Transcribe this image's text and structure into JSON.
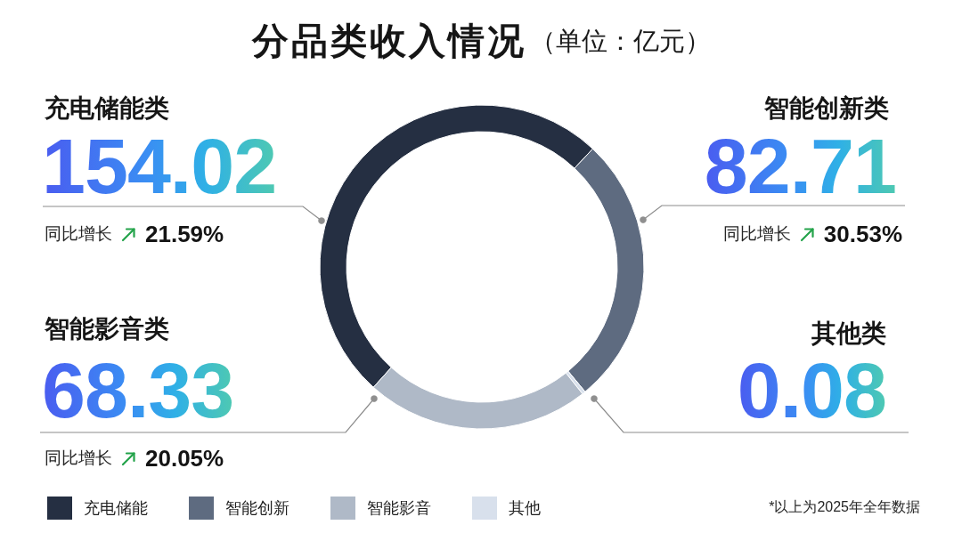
{
  "chart_data": {
    "type": "donut",
    "title": "分品类收入情况",
    "subtitle": "（单位：亿元）",
    "categories": [
      "充电储能",
      "智能创新",
      "智能影音",
      "其他"
    ],
    "values": [
      154.02,
      82.71,
      68.33,
      0.08
    ],
    "colors": [
      "#252f42",
      "#5e6b80",
      "#afb9c7",
      "#d8e0ec"
    ],
    "data_labels": true,
    "legend": "bottom",
    "annotations": [
      "充电储能类",
      "同比增长",
      "21.59%",
      "智能创新类",
      "同比增长",
      "30.53%",
      "智能影音类",
      "同比增长",
      "20.05%",
      "其他类",
      "*以上为2025年全年数据"
    ]
  }
}
